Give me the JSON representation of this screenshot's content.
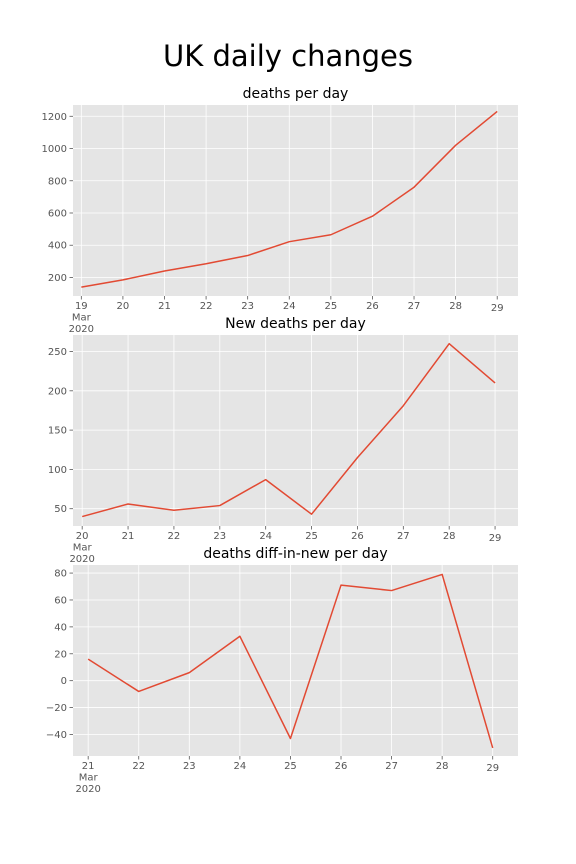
{
  "figure": {
    "suptitle": "UK daily changes"
  },
  "colors": {
    "background": "#E5E5E5",
    "grid": "#FFFFFF",
    "line": "#E24A33",
    "tick_text": "#555555"
  },
  "chart_data": [
    {
      "type": "line",
      "title": "deaths per day",
      "xlabel": "",
      "ylabel": "",
      "x": [
        19,
        20,
        21,
        22,
        23,
        24,
        25,
        26,
        27,
        28,
        29
      ],
      "x_tick_labels": [
        "19\nMar\n2020",
        "20",
        "21",
        "22",
        "23",
        "24",
        "25",
        "26",
        "27",
        "28",
        "29"
      ],
      "xlim": [
        18.8,
        29.5
      ],
      "series": [
        {
          "values": [
            140,
            185,
            240,
            285,
            336,
            422,
            465,
            580,
            760,
            1020,
            1230
          ]
        }
      ],
      "ylim": [
        85,
        1270
      ],
      "yticks": [
        200,
        400,
        600,
        800,
        1000,
        1200
      ],
      "ytick_labels": [
        "200",
        "400",
        "600",
        "800",
        "1000",
        "1200"
      ],
      "grid": true
    },
    {
      "type": "line",
      "title": "New deaths per day",
      "xlabel": "",
      "ylabel": "",
      "x": [
        20,
        21,
        22,
        23,
        24,
        25,
        26,
        27,
        28,
        29
      ],
      "x_tick_labels": [
        "20\nMar\n2020",
        "21",
        "22",
        "23",
        "24",
        "25",
        "26",
        "27",
        "28",
        "29"
      ],
      "xlim": [
        19.8,
        29.5
      ],
      "series": [
        {
          "values": [
            40,
            56,
            48,
            54,
            87,
            43,
            115,
            181,
            260,
            210
          ]
        }
      ],
      "ylim": [
        28,
        271
      ],
      "yticks": [
        50,
        100,
        150,
        200,
        250
      ],
      "ytick_labels": [
        "50",
        "100",
        "150",
        "200",
        "250"
      ],
      "grid": true
    },
    {
      "type": "line",
      "title": "deaths diff-in-new per day",
      "xlabel": "",
      "ylabel": "",
      "x": [
        21,
        22,
        23,
        24,
        25,
        26,
        27,
        28,
        29
      ],
      "x_tick_labels": [
        "21\nMar\n2020",
        "22",
        "23",
        "24",
        "25",
        "26",
        "27",
        "28",
        "29"
      ],
      "xlim": [
        20.7,
        29.5
      ],
      "series": [
        {
          "values": [
            16,
            -8,
            6,
            33,
            -43,
            71,
            67,
            79,
            -50
          ]
        }
      ],
      "ylim": [
        -56,
        86
      ],
      "yticks": [
        -40,
        -20,
        0,
        20,
        40,
        60,
        80
      ],
      "ytick_labels": [
        "−40",
        "−20",
        "0",
        "20",
        "40",
        "60",
        "80"
      ],
      "grid": true
    }
  ]
}
